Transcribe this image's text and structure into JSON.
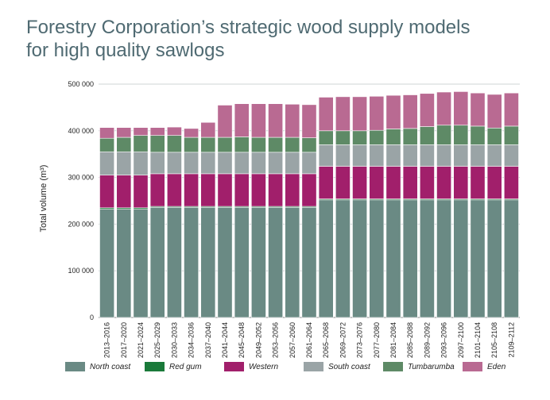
{
  "title": {
    "line1": "Forestry Corporation’s strategic wood supply models",
    "line2": "for high quality sawlogs"
  },
  "chart_data": {
    "type": "bar",
    "stacked": true,
    "ylabel": "Total volume (m³)",
    "ylim": [
      0,
      500000
    ],
    "yticks": [
      "0",
      "100 000",
      "200 000",
      "300 000",
      "400 000",
      "500 000"
    ],
    "grid": true,
    "legend_position": "bottom",
    "categories": [
      "2013–2016",
      "2017–2020",
      "2021–2024",
      "2025–2029",
      "2030–2033",
      "2034–2036",
      "2037–2040",
      "2041–2044",
      "2045–2048",
      "2049–2052",
      "2053–2056",
      "2057–2060",
      "2061–2064",
      "2065–2068",
      "2069–2072",
      "2073–2076",
      "2077–2080",
      "2081–2084",
      "2085–2088",
      "2089–2092",
      "2093–2096",
      "2097–2100",
      "2101–2104",
      "2105–2108",
      "2109–2112"
    ],
    "series": [
      {
        "name": "North coast",
        "color": "#6a8a84",
        "values": [
          232000,
          232000,
          232000,
          236000,
          236000,
          236000,
          236000,
          236000,
          236000,
          236000,
          236000,
          236000,
          236000,
          252000,
          252000,
          252000,
          252000,
          252000,
          252000,
          252000,
          252000,
          252000,
          252000,
          252000,
          252000
        ]
      },
      {
        "name": "Red gum",
        "color": "#1a7a3a",
        "values": [
          3000,
          3000,
          3000,
          2000,
          2000,
          2000,
          2000,
          2000,
          2000,
          2000,
          2000,
          2000,
          2000,
          2000,
          2000,
          2000,
          2000,
          2000,
          2000,
          2000,
          2000,
          2000,
          2000,
          2000,
          2000
        ]
      },
      {
        "name": "Western",
        "color": "#a11f6b",
        "values": [
          70000,
          70000,
          70000,
          70000,
          70000,
          70000,
          70000,
          70000,
          70000,
          70000,
          70000,
          70000,
          70000,
          70000,
          70000,
          70000,
          70000,
          70000,
          70000,
          70000,
          70000,
          70000,
          70000,
          70000,
          70000
        ]
      },
      {
        "name": "South coast",
        "color": "#9aa4a6",
        "values": [
          50000,
          50000,
          50000,
          46000,
          46000,
          46000,
          46000,
          46000,
          46000,
          46000,
          46000,
          46000,
          46000,
          46000,
          46000,
          46000,
          46000,
          46000,
          46000,
          46000,
          46000,
          46000,
          46000,
          46000,
          46000
        ]
      },
      {
        "name": "Tumbarumba",
        "color": "#5e8a66",
        "values": [
          29000,
          31000,
          35000,
          36000,
          36000,
          32000,
          32000,
          32000,
          33000,
          32000,
          32000,
          32000,
          31000,
          30000,
          30000,
          30000,
          31000,
          34000,
          35000,
          39000,
          42000,
          42000,
          40000,
          36000,
          40000
        ]
      },
      {
        "name": "Eden",
        "color": "#b96a92",
        "values": [
          23000,
          21000,
          17000,
          17000,
          18000,
          19000,
          32000,
          69000,
          71000,
          72000,
          72000,
          71000,
          71000,
          72000,
          73000,
          73000,
          73000,
          72000,
          72000,
          71000,
          71000,
          72000,
          71000,
          72000,
          71000
        ]
      }
    ]
  }
}
